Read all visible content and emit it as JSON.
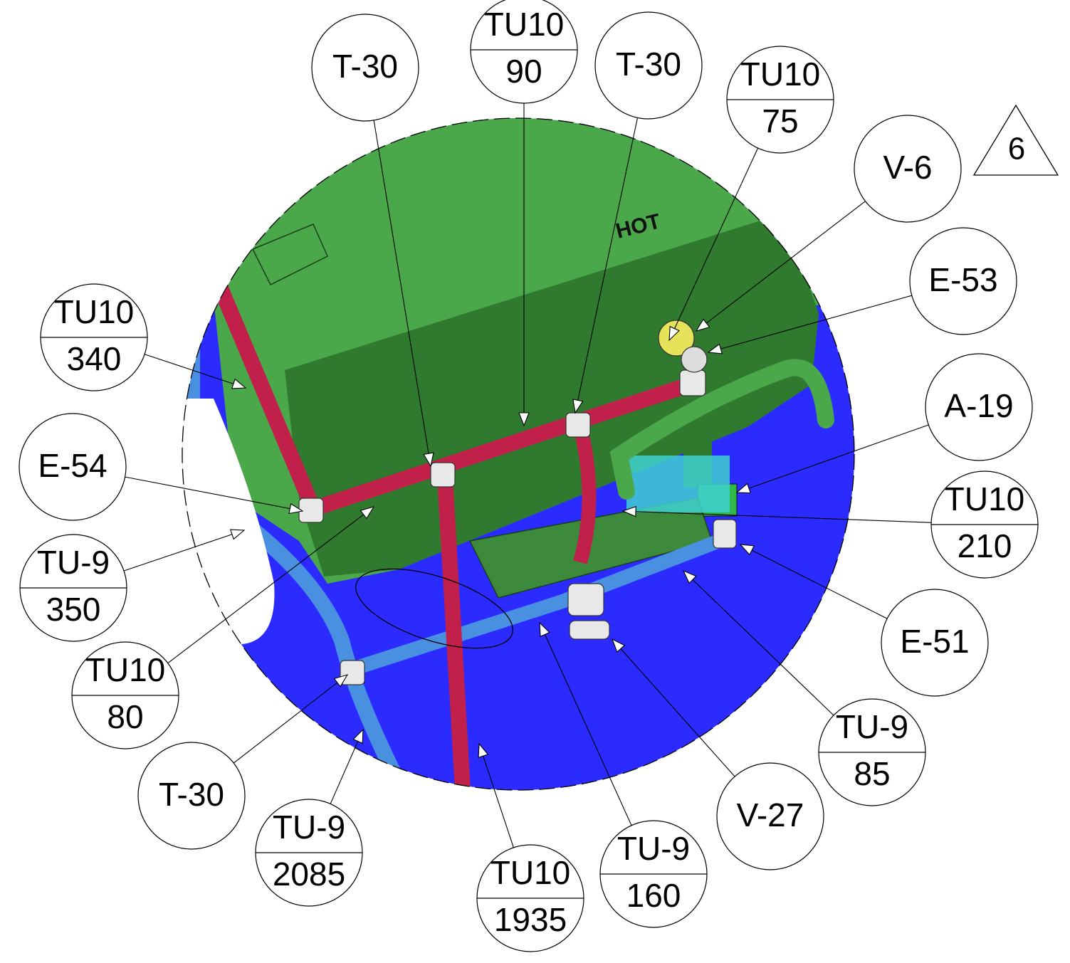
{
  "colors": {
    "background": "#2b2bff",
    "tank": "#4aa84a",
    "tank_dark": "#2f7a2f",
    "hot_pipe": "#c0204a",
    "cold_pipe": "#4a90e0",
    "fitting": "#e8e8e8"
  },
  "tank_label": "HOT",
  "revision": "6",
  "balloons": [
    {
      "id": "t30-top-left",
      "top": "T-30",
      "bottom": ""
    },
    {
      "id": "tu10-90",
      "top": "TU10",
      "bottom": "90"
    },
    {
      "id": "t30-top-right",
      "top": "T-30",
      "bottom": ""
    },
    {
      "id": "tu10-75",
      "top": "TU10",
      "bottom": "75"
    },
    {
      "id": "v6",
      "top": "V-6",
      "bottom": ""
    },
    {
      "id": "e53",
      "top": "E-53",
      "bottom": ""
    },
    {
      "id": "a19",
      "top": "A-19",
      "bottom": ""
    },
    {
      "id": "tu10-210",
      "top": "TU10",
      "bottom": "210"
    },
    {
      "id": "e51",
      "top": "E-51",
      "bottom": ""
    },
    {
      "id": "tu9-85",
      "top": "TU-9",
      "bottom": "85"
    },
    {
      "id": "v27",
      "top": "V-27",
      "bottom": ""
    },
    {
      "id": "tu9-160",
      "top": "TU-9",
      "bottom": "160"
    },
    {
      "id": "tu10-1935",
      "top": "TU10",
      "bottom": "1935"
    },
    {
      "id": "tu9-2085",
      "top": "TU-9",
      "bottom": "2085"
    },
    {
      "id": "t30-bottom",
      "top": "T-30",
      "bottom": ""
    },
    {
      "id": "tu10-80",
      "top": "TU10",
      "bottom": "80"
    },
    {
      "id": "tu9-350",
      "top": "TU-9",
      "bottom": "350"
    },
    {
      "id": "e54",
      "top": "E-54",
      "bottom": ""
    },
    {
      "id": "tu10-340",
      "top": "TU10",
      "bottom": "340"
    }
  ]
}
